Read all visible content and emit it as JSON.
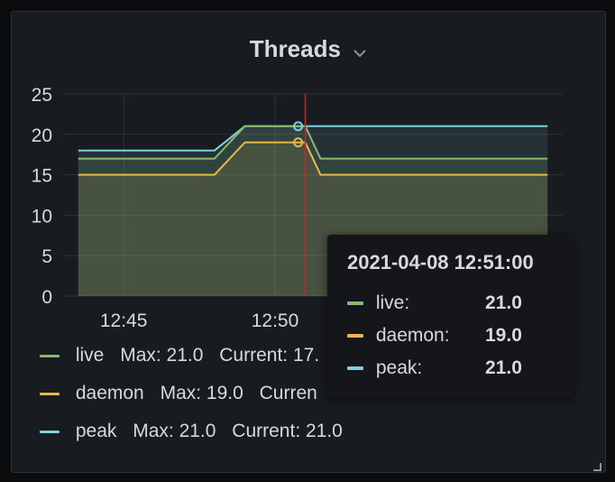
{
  "panel": {
    "title": "Threads",
    "menu_icon": "chevron-down-icon"
  },
  "colors": {
    "live": "#8ab86e",
    "daemon": "#e6b84a",
    "peak": "#7fd0e0",
    "grid": "#2f3236",
    "crosshair": "#c4242b",
    "text": "#d8d9da"
  },
  "chart_data": {
    "type": "line",
    "title": "Threads",
    "xlabel": "",
    "ylabel": "",
    "x": [
      "12:43:30",
      "12:48:00",
      "12:49:00",
      "12:51:00",
      "12:51:30",
      "12:59:00"
    ],
    "x_ticks": [
      "12:45",
      "12:50"
    ],
    "y_ticks": [
      "0",
      "5",
      "10",
      "15",
      "20",
      "25"
    ],
    "ylim": [
      0,
      25
    ],
    "grid": true,
    "fill": true,
    "legend_position": "bottom",
    "series": [
      {
        "name": "live",
        "values": [
          17,
          17,
          21,
          21,
          17,
          17
        ],
        "max": "21.0",
        "current": "17."
      },
      {
        "name": "daemon",
        "values": [
          15,
          15,
          19,
          19,
          15,
          15
        ],
        "max": "19.0",
        "current": ""
      },
      {
        "name": "peak",
        "values": [
          18,
          18,
          21,
          21,
          21,
          21
        ],
        "max": "21.0",
        "current": "21.0"
      }
    ],
    "hover_x": "12:51:00"
  },
  "legend": {
    "items": [
      {
        "name": "live",
        "max_label": "Max: 21.0",
        "current_label": "Current: 17."
      },
      {
        "name": "daemon",
        "max_label": "Max: 19.0",
        "current_label": "Curren"
      },
      {
        "name": "peak",
        "max_label": "Max: 21.0",
        "current_label": "Current: 21.0"
      }
    ]
  },
  "tooltip": {
    "time": "2021-04-08 12:51:00",
    "rows": [
      {
        "label": "live:",
        "value": "21.0"
      },
      {
        "label": "daemon:",
        "value": "19.0"
      },
      {
        "label": "peak:",
        "value": "21.0"
      }
    ]
  }
}
